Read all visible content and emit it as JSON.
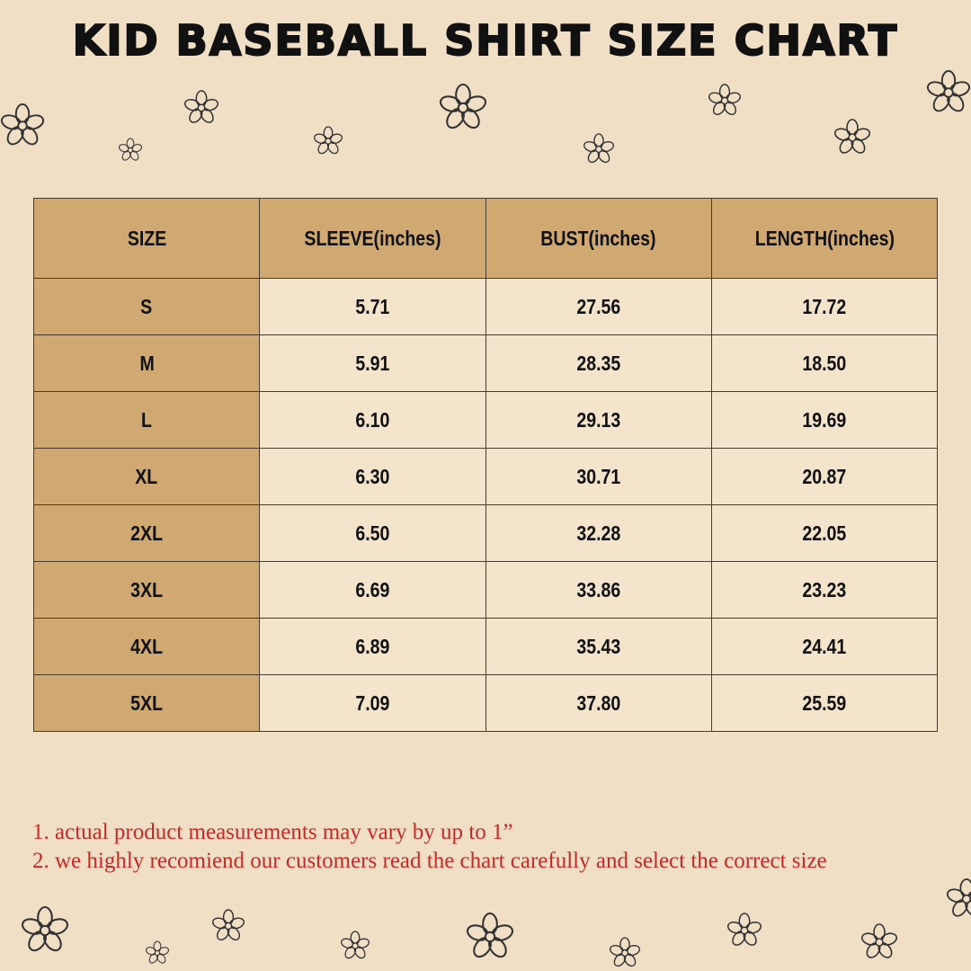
{
  "header": {
    "title": "KID BASEBALL SHIRT SIZE CHART"
  },
  "table": {
    "columns": [
      "SIZE",
      "SLEEVE(inches)",
      "BUST(inches)",
      "LENGTH(inches)"
    ],
    "rows": [
      [
        "S",
        "5.71",
        "27.56",
        "17.72"
      ],
      [
        "M",
        "5.91",
        "28.35",
        "18.50"
      ],
      [
        "L",
        "6.10",
        "29.13",
        "19.69"
      ],
      [
        "XL",
        "6.30",
        "30.71",
        "20.87"
      ],
      [
        "2XL",
        "6.50",
        "32.28",
        "22.05"
      ],
      [
        "3XL",
        "6.69",
        "33.86",
        "23.23"
      ],
      [
        "4XL",
        "6.89",
        "35.43",
        "24.41"
      ],
      [
        "5XL",
        "7.09",
        "37.80",
        "25.59"
      ]
    ]
  },
  "notes": [
    "1. actual product measurements may vary by up to 1”",
    "2. we highly recomiend our customers read the chart carefully and select the correct size"
  ]
}
